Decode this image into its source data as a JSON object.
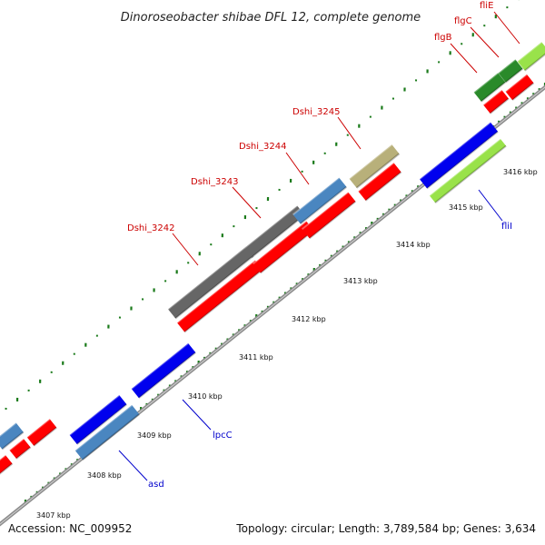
{
  "title": "Dinoroseobacter shibae DFL 12, complete genome",
  "accession": "Accession: NC_009952",
  "summary": "Topology: circular; Length: 3,789,584 bp; Genes: 3,634",
  "colors": {
    "red": "#ff0000",
    "blue": "#0000ee",
    "steelblue": "#4a86c0",
    "gray": "#666666",
    "khaki": "#b8b07a",
    "darkgreen": "#2a8a2a",
    "lightgreen": "#99e24a",
    "label_red": "#cc0000",
    "label_blue": "#0000cc",
    "backbone": "#8c8c8c",
    "tick": "#1a7a1a"
  },
  "scale_labels": [
    "3407 kbp",
    "3408 kbp",
    "3409 kbp",
    "3410 kbp",
    "3411 kbp",
    "3412 kbp",
    "3413 kbp",
    "3414 kbp",
    "3415 kbp",
    "3416 kbp"
  ],
  "gene_labels": [
    {
      "text": "Dshi_3242",
      "color": "red"
    },
    {
      "text": "Dshi_3243",
      "color": "red"
    },
    {
      "text": "Dshi_3244",
      "color": "red"
    },
    {
      "text": "Dshi_3245",
      "color": "red"
    },
    {
      "text": "flgB",
      "color": "red"
    },
    {
      "text": "flgC",
      "color": "red"
    },
    {
      "text": "fliE",
      "color": "red"
    },
    {
      "text": "lpcC",
      "color": "blue"
    },
    {
      "text": "asd",
      "color": "blue"
    },
    {
      "text": "fliI",
      "color": "blue"
    }
  ]
}
